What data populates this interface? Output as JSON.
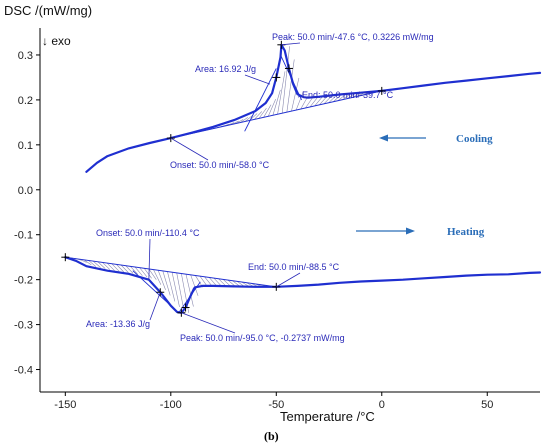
{
  "chart_data": {
    "type": "line",
    "ylabel": "DSC /(mW/mg)",
    "xlabel": "Temperature /°C",
    "exo_label": "↓ exo",
    "xlim": [
      -162,
      75
    ],
    "ylim": [
      -0.45,
      0.36
    ],
    "x_ticks": [
      -150,
      -100,
      -50,
      0,
      50
    ],
    "y_ticks": [
      0.3,
      0.2,
      0.1,
      0.0,
      -0.1,
      -0.2,
      -0.3,
      -0.4
    ],
    "y_tick_labels": [
      "0.3",
      "0.2",
      "0.1",
      "0.0",
      "-0.1",
      "-0.2",
      "-0.3",
      "-0.4"
    ],
    "caption": "(b)",
    "series": [
      {
        "name": "Cooling",
        "x": [
          -140,
          -135,
          -130,
          -120,
          -110,
          -100,
          -90,
          -80,
          -70,
          -60,
          -55,
          -52,
          -50,
          -48,
          -47.6,
          -46,
          -44,
          -42,
          -40,
          -37,
          -35,
          -30,
          -20,
          -10,
          0,
          10,
          20,
          30,
          40,
          50,
          60,
          70,
          75
        ],
        "y": [
          0.04,
          0.06,
          0.075,
          0.092,
          0.104,
          0.115,
          0.127,
          0.14,
          0.155,
          0.175,
          0.193,
          0.215,
          0.25,
          0.295,
          0.3226,
          0.31,
          0.27,
          0.235,
          0.213,
          0.206,
          0.205,
          0.207,
          0.212,
          0.216,
          0.22,
          0.226,
          0.232,
          0.238,
          0.243,
          0.248,
          0.253,
          0.258,
          0.26
        ]
      },
      {
        "name": "Heating",
        "x": [
          -150,
          -145,
          -140,
          -130,
          -120,
          -110.4,
          -105,
          -100,
          -97,
          -95,
          -93,
          -91,
          -89,
          -88.5,
          -85,
          -80,
          -70,
          -60,
          -50,
          -40,
          -30,
          -20,
          -10,
          0,
          10,
          20,
          30,
          40,
          50,
          60,
          70,
          75
        ],
        "y": [
          -0.15,
          -0.158,
          -0.17,
          -0.18,
          -0.187,
          -0.2,
          -0.228,
          -0.258,
          -0.272,
          -0.2737,
          -0.262,
          -0.24,
          -0.22,
          -0.217,
          -0.214,
          -0.214,
          -0.215,
          -0.216,
          -0.216,
          -0.214,
          -0.211,
          -0.207,
          -0.204,
          -0.202,
          -0.2,
          -0.197,
          -0.194,
          -0.191,
          -0.189,
          -0.188,
          -0.185,
          -0.184
        ]
      }
    ],
    "annotations": {
      "cooling_peak": "Peak: 50.0 min/-47.6 °C, 0.3226 mW/mg",
      "cooling_area": "Area: 16.92 J/g",
      "cooling_end": "End: 50.0 min/-39.7 °C",
      "cooling_onset": "Onset: 50.0 min/-58.0 °C",
      "heating_onset": "Onset: 50.0 min/-110.4 °C",
      "heating_end": "End: 50.0 min/-88.5 °C",
      "heating_area": "Area: -13.36 J/g",
      "heating_peak": "Peak: 50.0 min/-95.0 °C, -0.2737 mW/mg"
    },
    "mode_labels": {
      "cooling": "Cooling",
      "heating": "Heating"
    },
    "colors": {
      "curve": "#1f2fd0",
      "annotation": "#2a2ab8",
      "arrow": "#2a6db8",
      "axis": "#000000"
    }
  }
}
